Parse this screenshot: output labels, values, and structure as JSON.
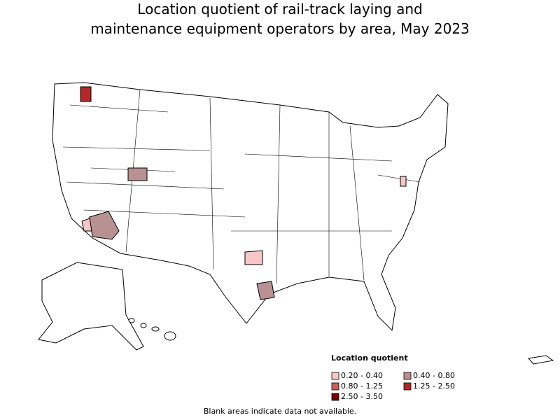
{
  "title": [
    "Location quotient of rail-track laying and",
    "maintenance equipment operators by area, May 2023"
  ],
  "legend": {
    "title": "Location quotient",
    "items": [
      {
        "label": "0.20 - 0.40",
        "color": "#f7c6c6"
      },
      {
        "label": "0.40 - 0.80",
        "color": "#b89292"
      },
      {
        "label": "0.80 - 1.25",
        "color": "#c86060"
      },
      {
        "label": "1.25 - 2.50",
        "color": "#b42828"
      },
      {
        "label": "2.50 - 3.50",
        "color": "#7a0000"
      }
    ]
  },
  "footnote": "Blank areas indicate data not available."
}
